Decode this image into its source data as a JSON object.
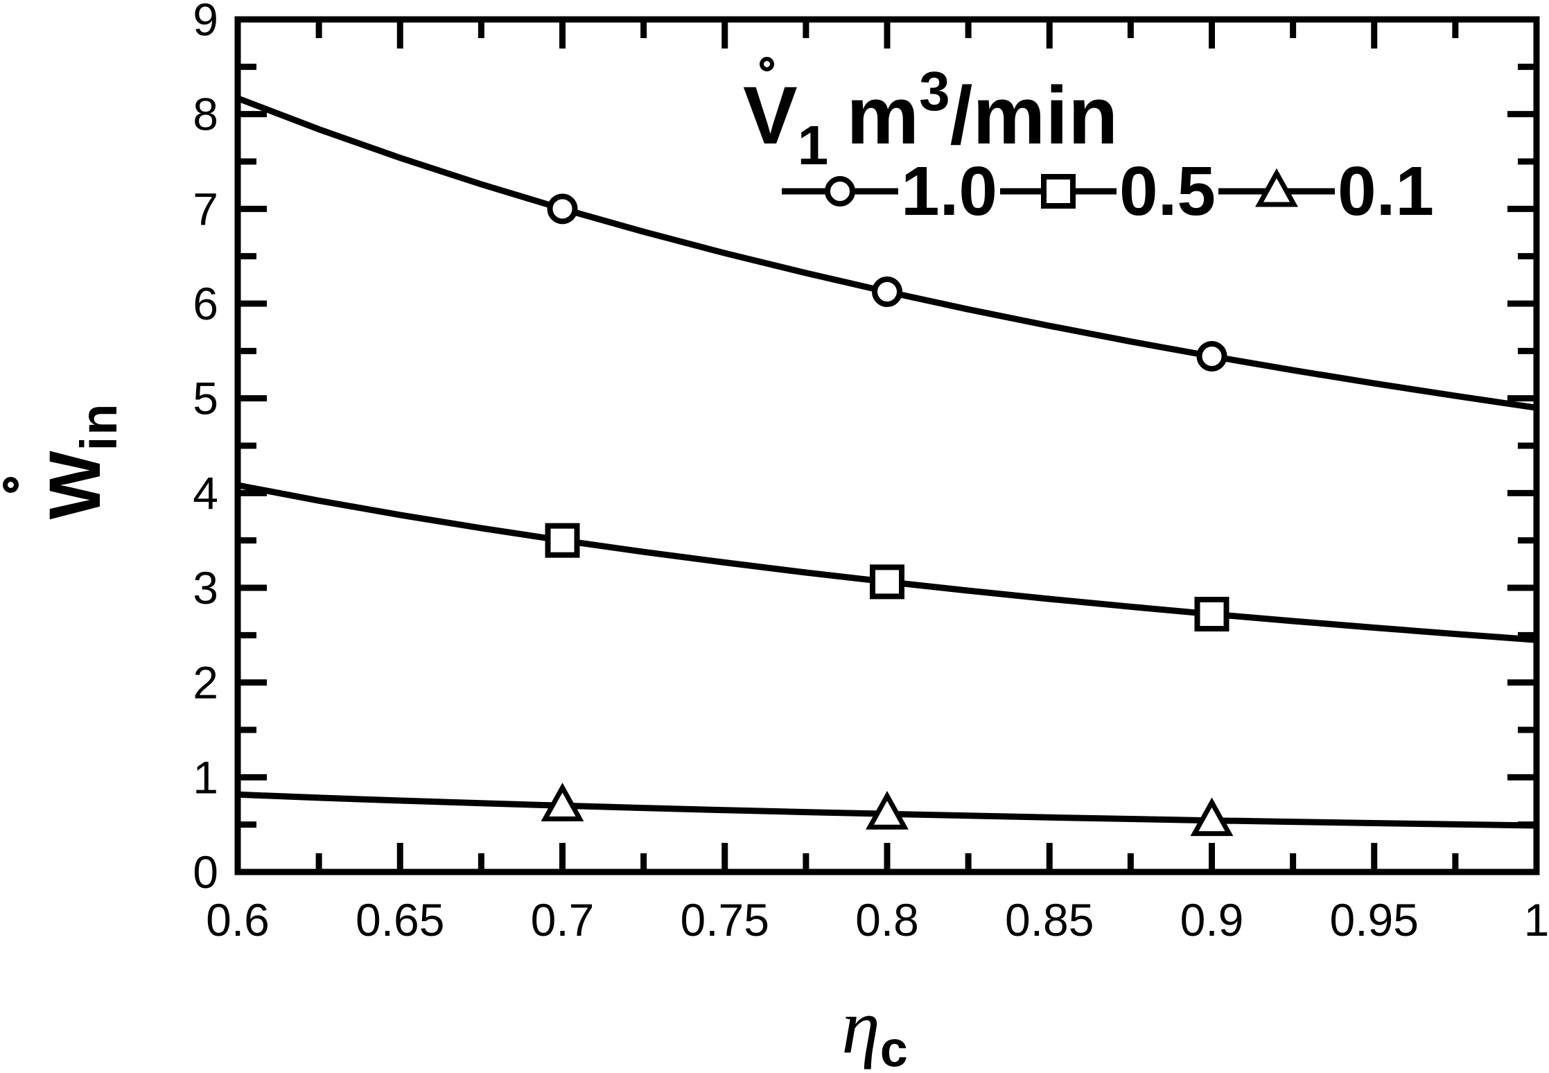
{
  "figure": {
    "background_color": "#ffffff",
    "line_color": "#000000"
  },
  "axes": {
    "y_label": {
      "overdot": "overdot-ring",
      "letter": "W",
      "subscript": "in"
    },
    "x_label": {
      "letter": "η",
      "subscript": "c"
    }
  },
  "legend": {
    "title": {
      "v": "V",
      "v_overdot": "overdot-ring",
      "v_sub": "1",
      "unit_m": "m",
      "unit_sup": "3",
      "unit_rest": "/min"
    }
  },
  "chart_data": {
    "type": "line",
    "title": "",
    "legend_title": "V̇1 m3/min",
    "xlabel": "ηc",
    "ylabel": "Ẇin",
    "xlim": [
      0.6,
      1.0
    ],
    "ylim": [
      0,
      9
    ],
    "grid": false,
    "legend_position": "top-center-inside",
    "x_tick_values": [
      0.6,
      0.65,
      0.7,
      0.75,
      0.8,
      0.85,
      0.9,
      0.95,
      1.0
    ],
    "x_tick_labels": [
      "0.6",
      "0.65",
      "0.7",
      "0.75",
      "0.8",
      "0.85",
      "0.9",
      "0.95",
      "1"
    ],
    "x_minor_step": 0.025,
    "y_tick_values": [
      0,
      1,
      2,
      3,
      4,
      5,
      6,
      7,
      8,
      9
    ],
    "y_tick_labels": [
      "0",
      "1",
      "2",
      "3",
      "4",
      "5",
      "6",
      "7",
      "8",
      "9"
    ],
    "y_minor_step": 0.5,
    "x": [
      0.6,
      0.625,
      0.65,
      0.675,
      0.7,
      0.725,
      0.75,
      0.775,
      0.8,
      0.825,
      0.85,
      0.875,
      0.9,
      0.925,
      0.95,
      0.975,
      1.0
    ],
    "series": [
      {
        "name": "V1 = 1.0 m3/min",
        "legend_label": "1.0",
        "marker": "circle",
        "values": [
          8.167,
          7.84,
          7.538,
          7.259,
          7.0,
          6.759,
          6.533,
          6.323,
          6.125,
          5.939,
          5.765,
          5.6,
          5.444,
          5.297,
          5.158,
          5.026,
          4.9
        ],
        "marker_x": [
          0.7,
          0.8,
          0.9
        ],
        "marker_values": [
          7.0,
          6.125,
          5.444
        ]
      },
      {
        "name": "V1 = 0.5 m3/min",
        "legend_label": "0.5",
        "marker": "square",
        "values": [
          4.083,
          3.92,
          3.769,
          3.63,
          3.5,
          3.379,
          3.267,
          3.161,
          3.063,
          2.97,
          2.882,
          2.8,
          2.722,
          2.649,
          2.579,
          2.513,
          2.45
        ],
        "marker_x": [
          0.7,
          0.8,
          0.9
        ],
        "marker_values": [
          3.5,
          3.063,
          2.722
        ]
      },
      {
        "name": "V1 = 0.1 m3/min",
        "legend_label": "0.1",
        "marker": "triangle",
        "values": [
          0.817,
          0.784,
          0.754,
          0.726,
          0.7,
          0.676,
          0.653,
          0.632,
          0.613,
          0.594,
          0.576,
          0.56,
          0.544,
          0.53,
          0.516,
          0.503,
          0.49
        ],
        "marker_x": [
          0.7,
          0.8,
          0.9
        ],
        "marker_values": [
          0.7,
          0.613,
          0.544
        ]
      }
    ]
  }
}
